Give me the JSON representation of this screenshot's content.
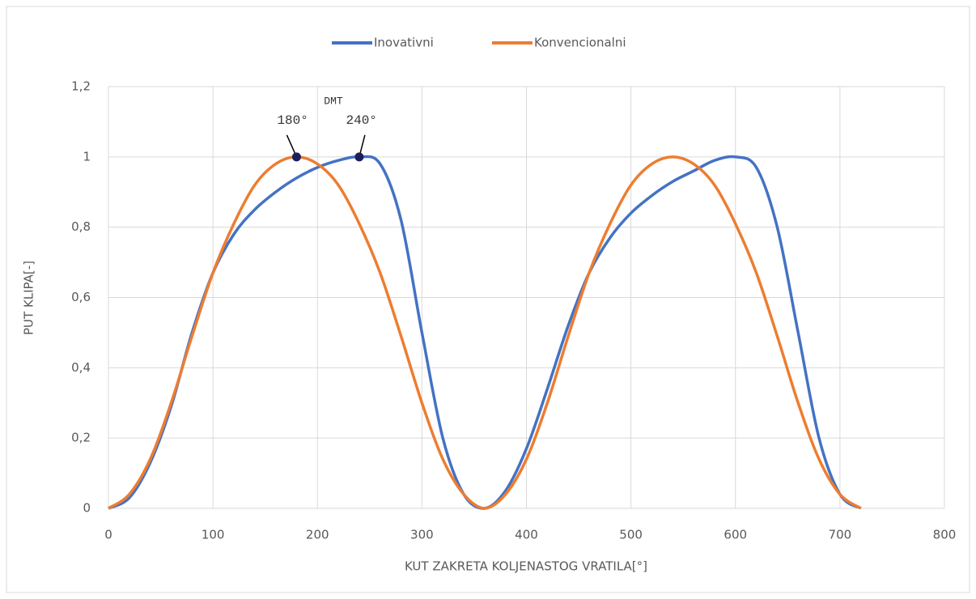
{
  "chart_data": {
    "type": "line",
    "x_label": "KUT ZAKRETA KOLJENASTOG VRATILA[°]",
    "y_label": "PUT KLIPA[-]",
    "x": [
      0,
      20,
      40,
      60,
      80,
      100,
      120,
      140,
      160,
      180,
      200,
      220,
      240,
      260,
      280,
      300,
      320,
      340,
      360,
      380,
      400,
      420,
      440,
      460,
      480,
      500,
      520,
      540,
      560,
      580,
      600,
      620,
      640,
      660,
      680,
      700,
      720
    ],
    "series": [
      {
        "name": "Inovativni",
        "color": "#4472c4",
        "values": [
          0,
          0.03,
          0.13,
          0.29,
          0.5,
          0.67,
          0.78,
          0.85,
          0.9,
          0.94,
          0.97,
          0.99,
          1.0,
          0.98,
          0.82,
          0.5,
          0.2,
          0.04,
          0,
          0.05,
          0.17,
          0.34,
          0.52,
          0.67,
          0.77,
          0.84,
          0.89,
          0.93,
          0.96,
          0.99,
          1.0,
          0.97,
          0.8,
          0.5,
          0.2,
          0.04,
          0
        ]
      },
      {
        "name": "Konvencionalni",
        "color": "#ed7d31",
        "values": [
          0,
          0.04,
          0.14,
          0.3,
          0.49,
          0.67,
          0.81,
          0.92,
          0.98,
          1,
          0.98,
          0.92,
          0.81,
          0.67,
          0.49,
          0.3,
          0.14,
          0.04,
          0,
          0.04,
          0.14,
          0.3,
          0.49,
          0.67,
          0.81,
          0.92,
          0.98,
          1,
          0.98,
          0.92,
          0.81,
          0.67,
          0.49,
          0.3,
          0.14,
          0.04,
          0
        ]
      }
    ],
    "annotations": [
      {
        "text": "180°",
        "x": 180,
        "y": 1
      },
      {
        "text": "240°",
        "x": 240,
        "y": 1
      },
      {
        "text": "DMT"
      }
    ],
    "marker_color": "#1a1f5c",
    "xlim": [
      0,
      800
    ],
    "xticks": [
      0,
      100,
      200,
      300,
      400,
      500,
      600,
      700,
      800
    ],
    "ylim": [
      0,
      1.2
    ],
    "yticks": [
      0,
      {
        "value": 0.2,
        "label": "0,2"
      },
      {
        "value": 0.4,
        "label": "0,4"
      },
      {
        "value": 0.6,
        "label": "0,6"
      },
      {
        "value": 0.8,
        "label": "0,8"
      },
      1,
      {
        "value": 1.2,
        "label": "1,2"
      }
    ],
    "grid": true,
    "legend": "top"
  }
}
